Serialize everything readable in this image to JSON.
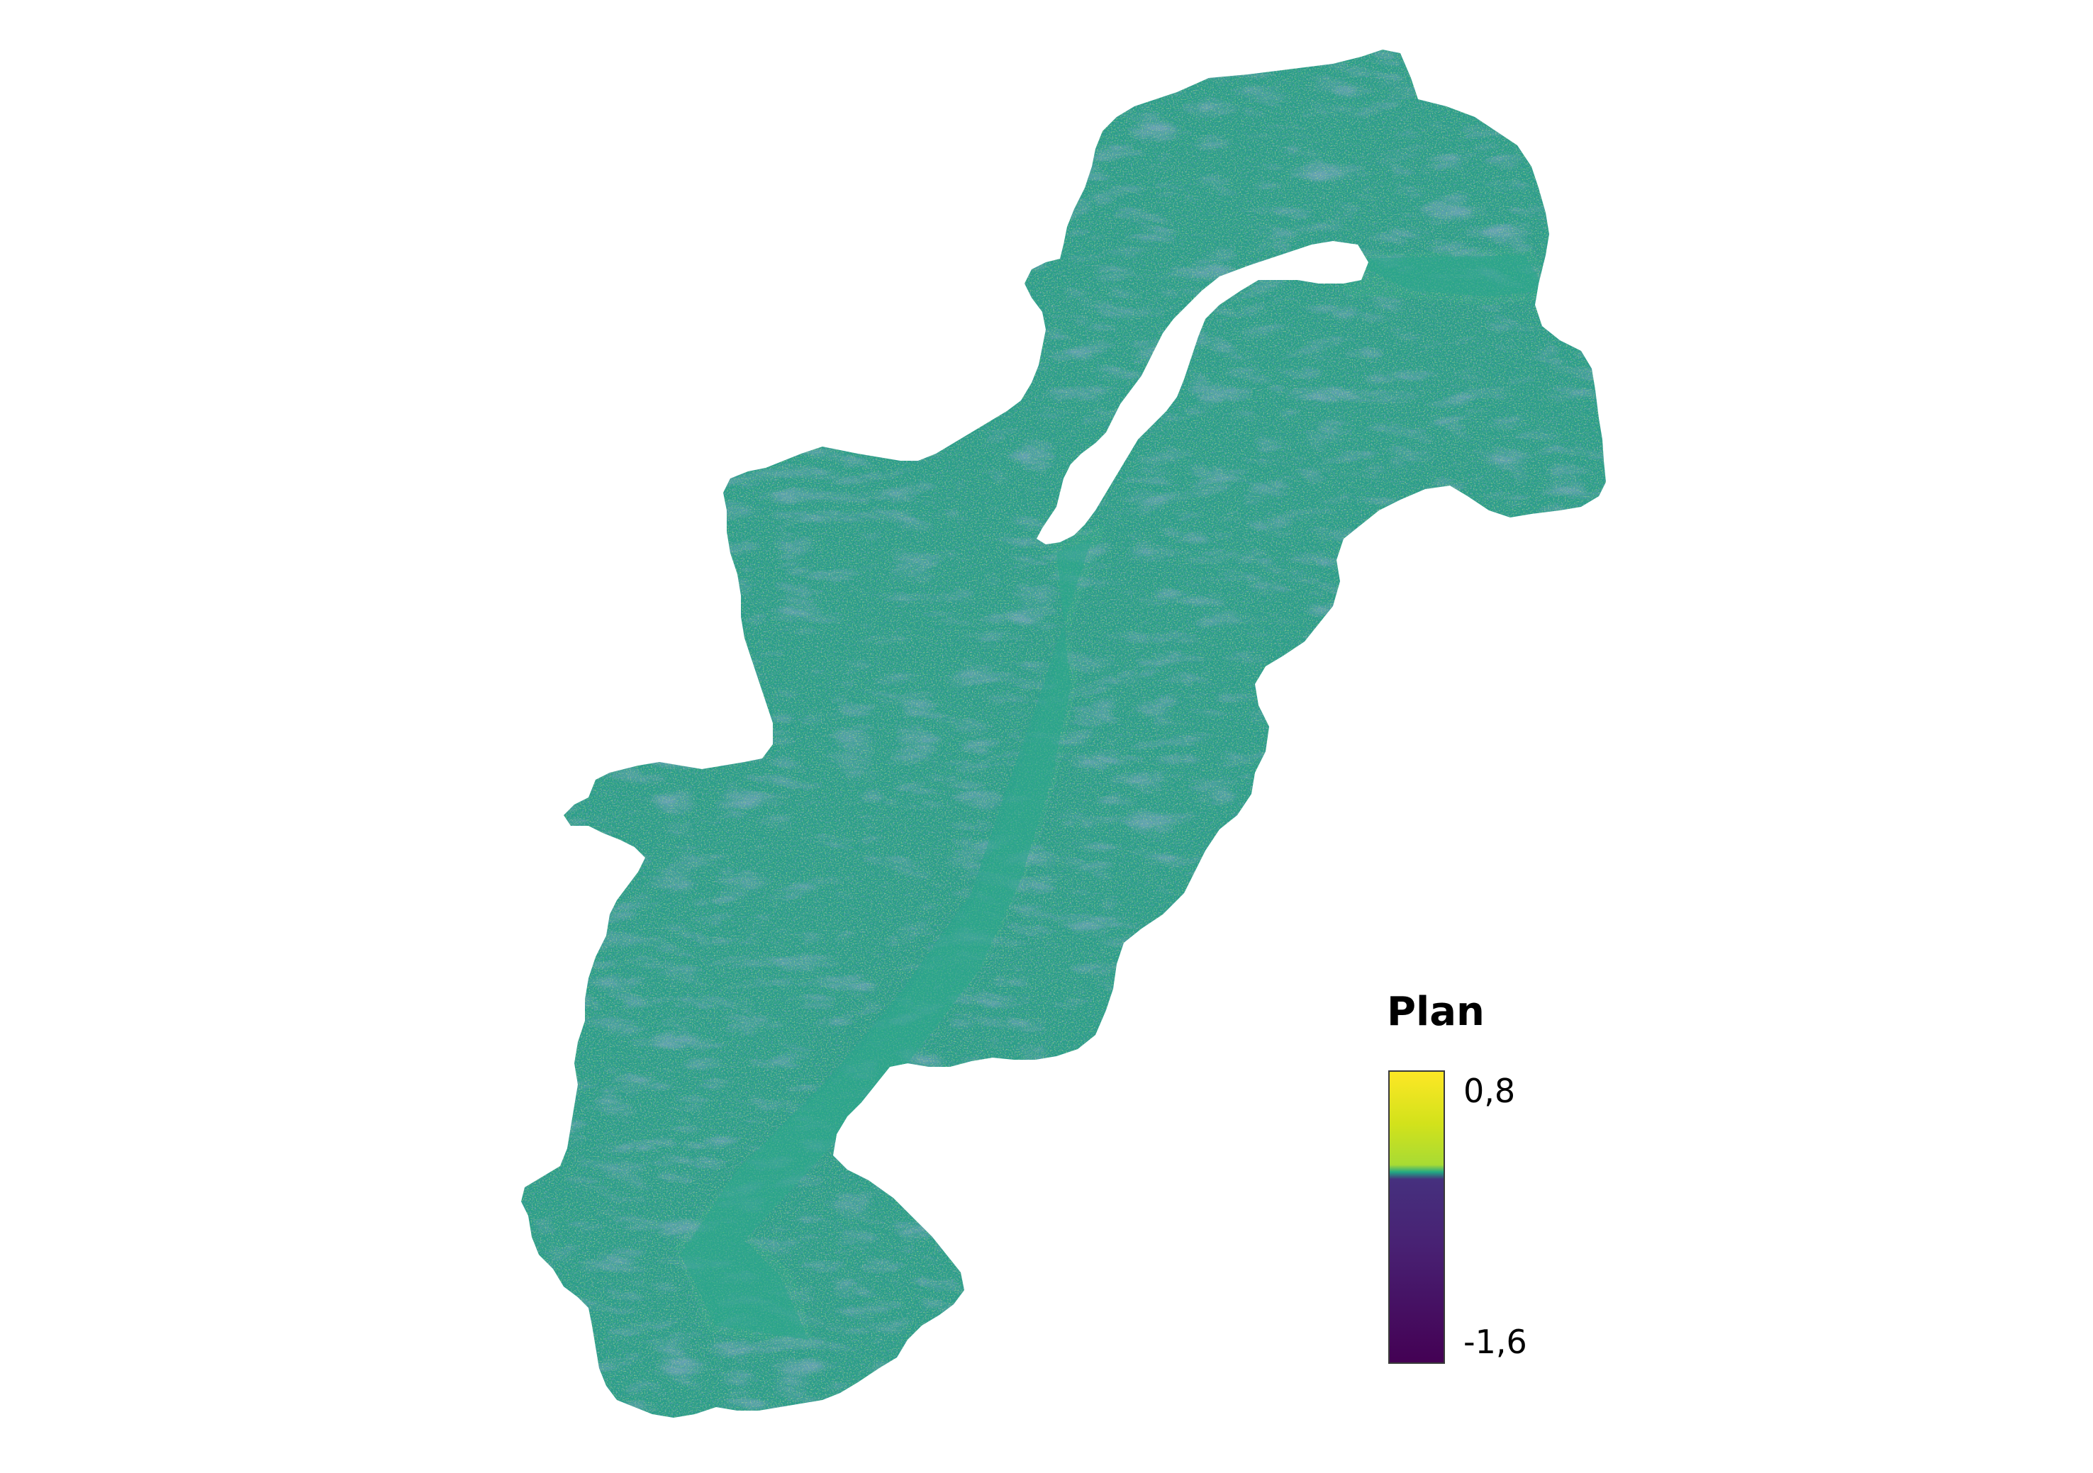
{
  "map": {
    "layer": "plan-curvature-raster",
    "colors": {
      "background": "#ffffff",
      "base": "#2a9d8a",
      "base_light": "#35b088",
      "valley": "#2fa38a",
      "ridge_dark": "#31618d",
      "ridge_light": "#9fd63b",
      "lake": "#ffffff"
    }
  },
  "legend": {
    "title": "Plan",
    "max_label": "0,8",
    "min_label": "-1,6",
    "ramp_colors": [
      "#fde725",
      "#d2e21b",
      "#a8db34",
      "#22a884",
      "#46307e",
      "#482173",
      "#440154"
    ]
  }
}
